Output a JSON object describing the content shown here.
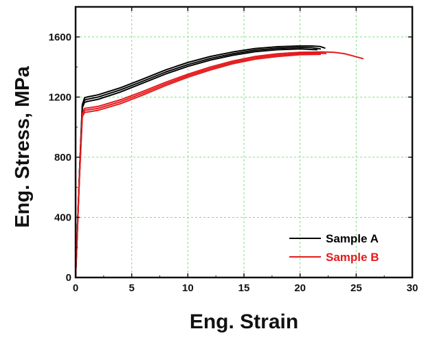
{
  "chart_data": {
    "type": "line",
    "title": "",
    "xlabel": "Eng. Strain",
    "ylabel": "Eng. Stress, MPa",
    "xlim": [
      0,
      30
    ],
    "ylim": [
      0,
      1800
    ],
    "x_ticks": [
      0,
      5,
      10,
      15,
      20,
      25,
      30
    ],
    "y_ticks": [
      0,
      400,
      800,
      1200,
      1600
    ],
    "x_tick_labels": [
      "0",
      "5",
      "10",
      "15",
      "20",
      "25",
      "30"
    ],
    "y_tick_labels": [
      "0",
      "400",
      "800",
      "1200",
      "1600"
    ],
    "grid": true,
    "legend_position": "bottom-right",
    "legend": [
      {
        "label": "Sample A",
        "color": "#000000"
      },
      {
        "label": "Sample B",
        "color": "#e41a1c"
      }
    ],
    "series": [
      {
        "name": "Sample A (1)",
        "group": "Sample A",
        "color": "#000000",
        "x": [
          0,
          0.35,
          0.6,
          0.8,
          1,
          2,
          4,
          6,
          8,
          10,
          12,
          14,
          16,
          18,
          20,
          21,
          21.8,
          22.2
        ],
        "y": [
          0,
          700,
          1150,
          1195,
          1200,
          1215,
          1262,
          1320,
          1380,
          1430,
          1470,
          1500,
          1523,
          1535,
          1540,
          1540,
          1536,
          1526
        ]
      },
      {
        "name": "Sample A (2)",
        "group": "Sample A",
        "color": "#000000",
        "x": [
          0,
          0.35,
          0.6,
          0.8,
          1,
          2,
          4,
          6,
          8,
          10,
          12,
          14,
          16,
          18,
          20,
          21,
          21.8
        ],
        "y": [
          0,
          700,
          1140,
          1180,
          1185,
          1200,
          1248,
          1306,
          1366,
          1416,
          1457,
          1488,
          1512,
          1525,
          1530,
          1529,
          1520
        ]
      },
      {
        "name": "Sample A (3)",
        "group": "Sample A",
        "color": "#000000",
        "x": [
          0,
          0.35,
          0.6,
          0.8,
          1,
          2,
          4,
          6,
          8,
          10,
          12,
          14,
          16,
          18,
          20,
          21.5
        ],
        "y": [
          0,
          700,
          1130,
          1165,
          1170,
          1185,
          1234,
          1293,
          1353,
          1404,
          1446,
          1478,
          1502,
          1515,
          1520,
          1515
        ]
      },
      {
        "name": "Sample B (1)",
        "group": "Sample B",
        "color": "#e41a1c",
        "x": [
          0,
          0.35,
          0.6,
          0.8,
          1,
          2,
          4,
          6,
          8,
          10,
          12,
          14,
          16,
          18,
          20,
          22,
          23,
          24,
          25.6
        ],
        "y": [
          0,
          680,
          1090,
          1125,
          1127,
          1138,
          1182,
          1238,
          1298,
          1352,
          1400,
          1440,
          1470,
          1488,
          1498,
          1500,
          1498,
          1488,
          1456
        ]
      },
      {
        "name": "Sample B (2)",
        "group": "Sample B",
        "color": "#e41a1c",
        "x": [
          0,
          0.35,
          0.6,
          0.8,
          1,
          2,
          4,
          6,
          8,
          10,
          12,
          14,
          16,
          18,
          20,
          21.5,
          22.3
        ],
        "y": [
          0,
          680,
          1080,
          1112,
          1114,
          1125,
          1169,
          1226,
          1287,
          1342,
          1390,
          1431,
          1461,
          1479,
          1490,
          1492,
          1490
        ]
      },
      {
        "name": "Sample B (3)",
        "group": "Sample B",
        "color": "#e41a1c",
        "x": [
          0,
          0.35,
          0.6,
          0.8,
          1,
          2,
          4,
          6,
          8,
          10,
          12,
          14,
          16,
          18,
          20,
          21.8
        ],
        "y": [
          0,
          680,
          1070,
          1098,
          1100,
          1112,
          1156,
          1214,
          1276,
          1332,
          1380,
          1422,
          1452,
          1470,
          1482,
          1484
        ]
      }
    ]
  }
}
